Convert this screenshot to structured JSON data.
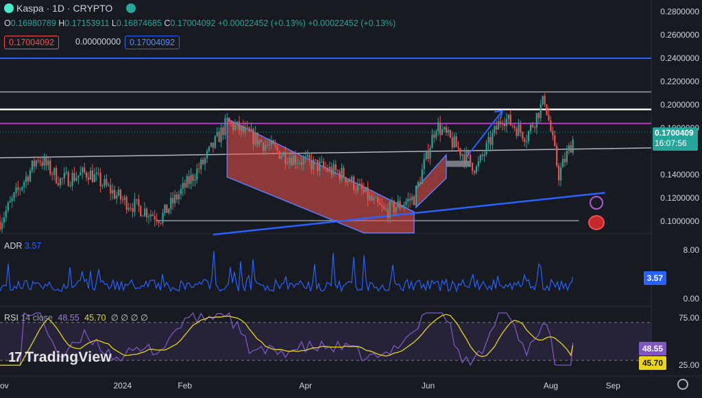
{
  "header": {
    "symbol": "Kaspa · 1D · CRYPTO",
    "ohlc": {
      "o_label": "O",
      "o": "0.16980789",
      "h_label": "H",
      "h": "0.17153911",
      "l_label": "L",
      "l": "0.16874685",
      "c_label": "C",
      "c": "0.17004092",
      "change": "+0.00022452 (+0.13%)",
      "change2": "+0.00022452 (+0.13%)"
    },
    "boxes": [
      "0.17004092",
      "0.00000000",
      "0.17004092"
    ]
  },
  "price_axis": {
    "ticks": [
      "0.2800000",
      "0.2600000",
      "0.2400000",
      "0.2200000",
      "0.2000000",
      "0.1800000",
      "0.1400000",
      "0.1200000",
      "0.1000000"
    ],
    "last_price": "0.1700409",
    "countdown": "16:07:56"
  },
  "adr": {
    "label": "ADR",
    "value": "3.57",
    "ticks": [
      "8.00",
      "0.00"
    ],
    "pill": "3.57"
  },
  "rsi": {
    "label": "RSI",
    "params": "14 close",
    "value": "48.55",
    "ma_value": "45.70",
    "extra": "∅ ∅ ∅ ∅",
    "ticks": [
      "75.00",
      "25.00"
    ],
    "pill_rsi": "48.55",
    "pill_ma": "45.70"
  },
  "time_axis": [
    "ov",
    "2024",
    "Feb",
    "Apr",
    "Jun",
    "Aug",
    "Sep"
  ],
  "watermark": "TradingView",
  "colors": {
    "up": "#26a69a",
    "down": "#ef5350",
    "rsi": "#7e57c2",
    "rsi_ma": "#e9d51b",
    "adr": "#2962ff"
  },
  "chart_data": {
    "type": "candlestick",
    "symbol": "Kaspa",
    "interval": "1D",
    "y_range": [
      0.09,
      0.29
    ],
    "x_range": [
      "2023-11-01",
      "2024-09-20"
    ],
    "ohlc_sample": [
      {
        "date": "2023-11-01",
        "c": 0.1
      },
      {
        "date": "2023-11-20",
        "c": 0.155
      },
      {
        "date": "2023-12-01",
        "c": 0.135
      },
      {
        "date": "2023-12-15",
        "c": 0.142
      },
      {
        "date": "2024-01-01",
        "c": 0.118
      },
      {
        "date": "2024-01-20",
        "c": 0.103
      },
      {
        "date": "2024-02-10",
        "c": 0.15
      },
      {
        "date": "2024-02-22",
        "c": 0.185
      },
      {
        "date": "2024-03-20",
        "c": 0.158
      },
      {
        "date": "2024-04-20",
        "c": 0.14
      },
      {
        "date": "2024-05-10",
        "c": 0.108
      },
      {
        "date": "2024-05-25",
        "c": 0.12
      },
      {
        "date": "2024-06-05",
        "c": 0.183
      },
      {
        "date": "2024-06-25",
        "c": 0.145
      },
      {
        "date": "2024-07-08",
        "c": 0.19
      },
      {
        "date": "2024-07-20",
        "c": 0.173
      },
      {
        "date": "2024-07-29",
        "c": 0.205
      },
      {
        "date": "2024-08-05",
        "c": 0.14
      },
      {
        "date": "2024-08-12",
        "c": 0.17
      }
    ],
    "levels": [
      0.24,
      0.211,
      0.196,
      0.184
    ],
    "last_close": 0.17004092,
    "adr": {
      "range": [
        0,
        9
      ],
      "last": 3.57
    },
    "rsi": {
      "range": [
        20,
        85
      ],
      "last": 48.55,
      "ma_last": 45.7,
      "bands": [
        70,
        30
      ]
    }
  }
}
